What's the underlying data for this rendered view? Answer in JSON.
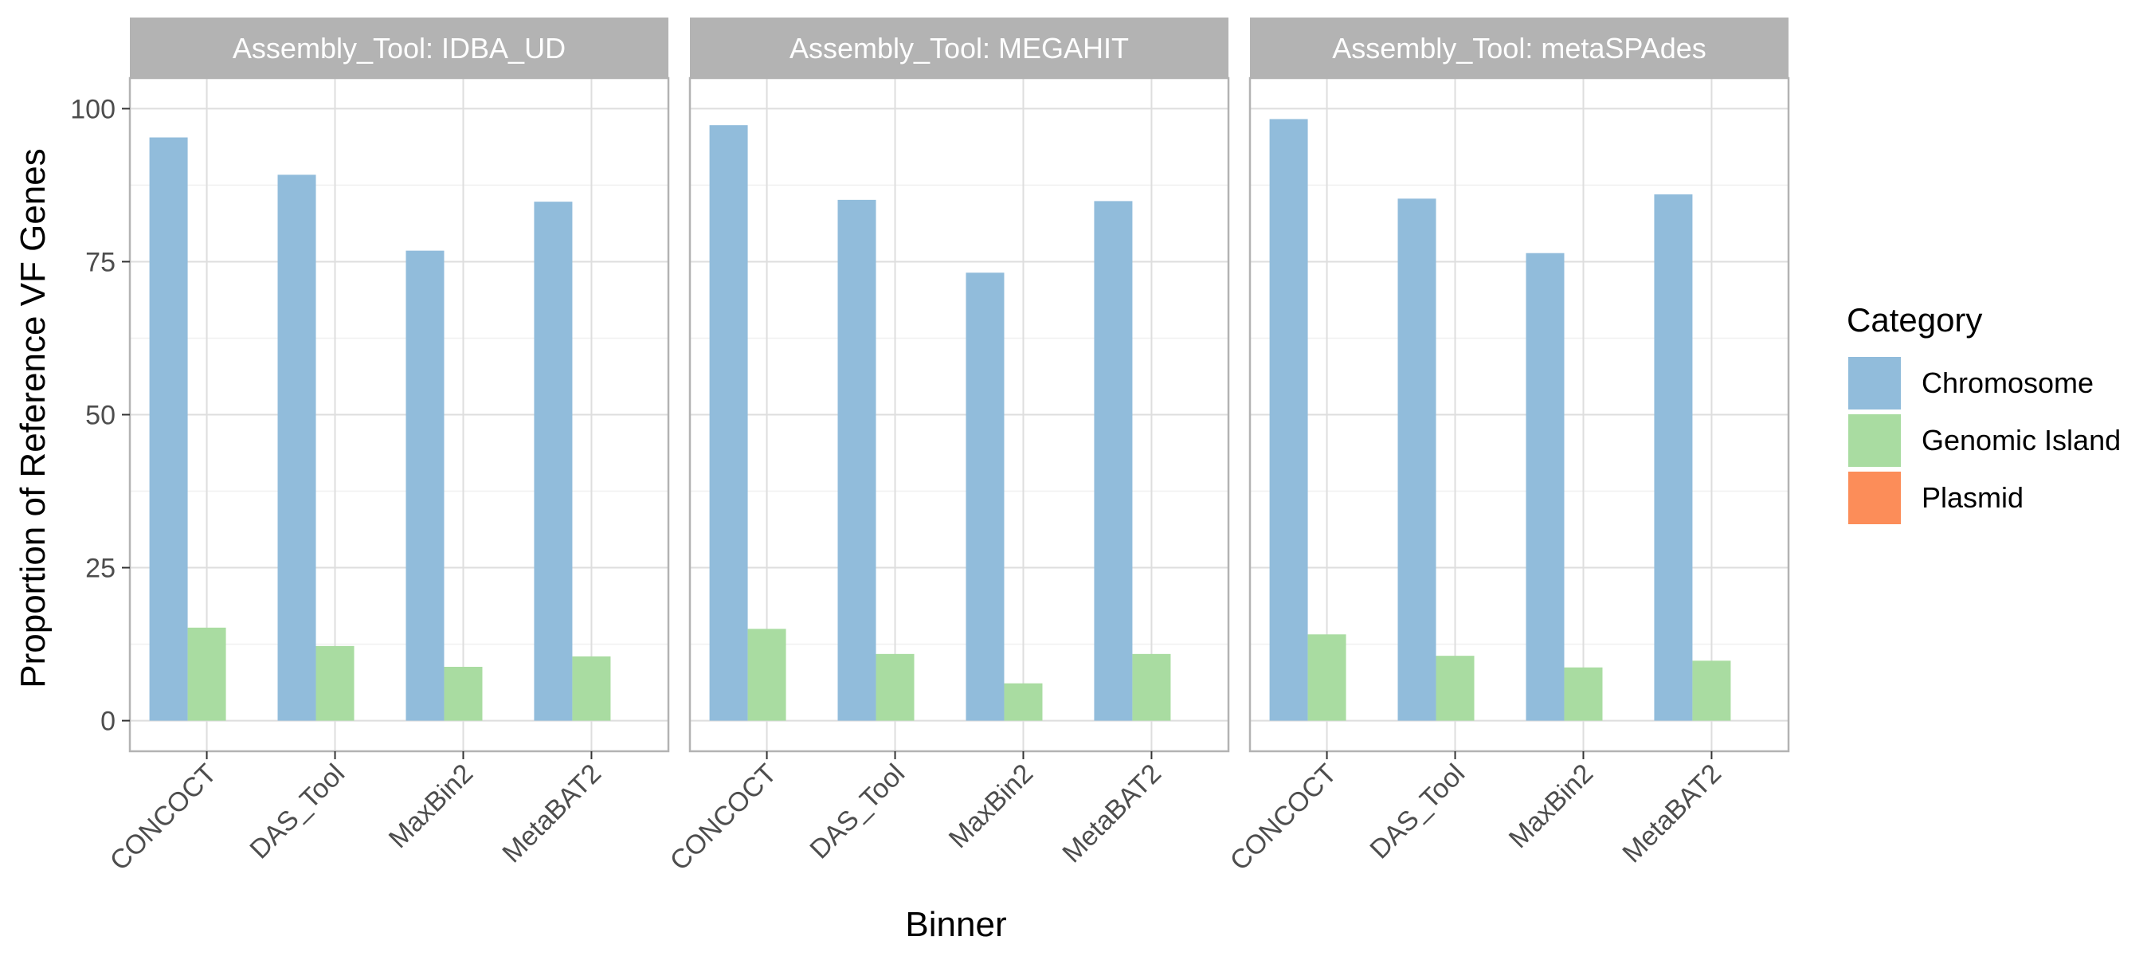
{
  "chart_data": {
    "type": "bar",
    "facet_label_prefix": "Assembly_Tool: ",
    "xlabel": "Binner",
    "ylabel": "Proportion of Reference VF Genes",
    "ylim": [
      -5,
      105
    ],
    "yticks": [
      0,
      25,
      50,
      75,
      100
    ],
    "grid": true,
    "legend_position": "right",
    "categories": [
      "CONCOCT",
      "DAS_Tool",
      "MaxBin2",
      "MetaBAT2"
    ],
    "legend": {
      "title": "Category",
      "entries": [
        {
          "name": "Chromosome",
          "color": "#91bcdb"
        },
        {
          "name": "Genomic Island",
          "color": "#a9dca1"
        },
        {
          "name": "Plasmid",
          "color": "#fc8d59"
        }
      ]
    },
    "facets": [
      {
        "name": "IDBA_UD",
        "series": [
          {
            "name": "Chromosome",
            "values": [
              95.3,
              89.2,
              76.8,
              84.8
            ]
          },
          {
            "name": "Genomic Island",
            "values": [
              15.2,
              12.2,
              8.8,
              10.5
            ]
          },
          {
            "name": "Plasmid",
            "values": [
              0,
              0,
              0,
              0
            ]
          }
        ]
      },
      {
        "name": "MEGAHIT",
        "series": [
          {
            "name": "Chromosome",
            "values": [
              97.3,
              85.1,
              73.2,
              84.9
            ]
          },
          {
            "name": "Genomic Island",
            "values": [
              15.0,
              10.9,
              6.1,
              10.9
            ]
          },
          {
            "name": "Plasmid",
            "values": [
              0,
              0,
              0,
              0
            ]
          }
        ]
      },
      {
        "name": "metaSPAdes",
        "series": [
          {
            "name": "Chromosome",
            "values": [
              98.3,
              85.3,
              76.4,
              86.0
            ]
          },
          {
            "name": "Genomic Island",
            "values": [
              14.1,
              10.6,
              8.7,
              9.8
            ]
          },
          {
            "name": "Plasmid",
            "values": [
              0,
              0,
              0,
              0
            ]
          }
        ]
      }
    ]
  }
}
